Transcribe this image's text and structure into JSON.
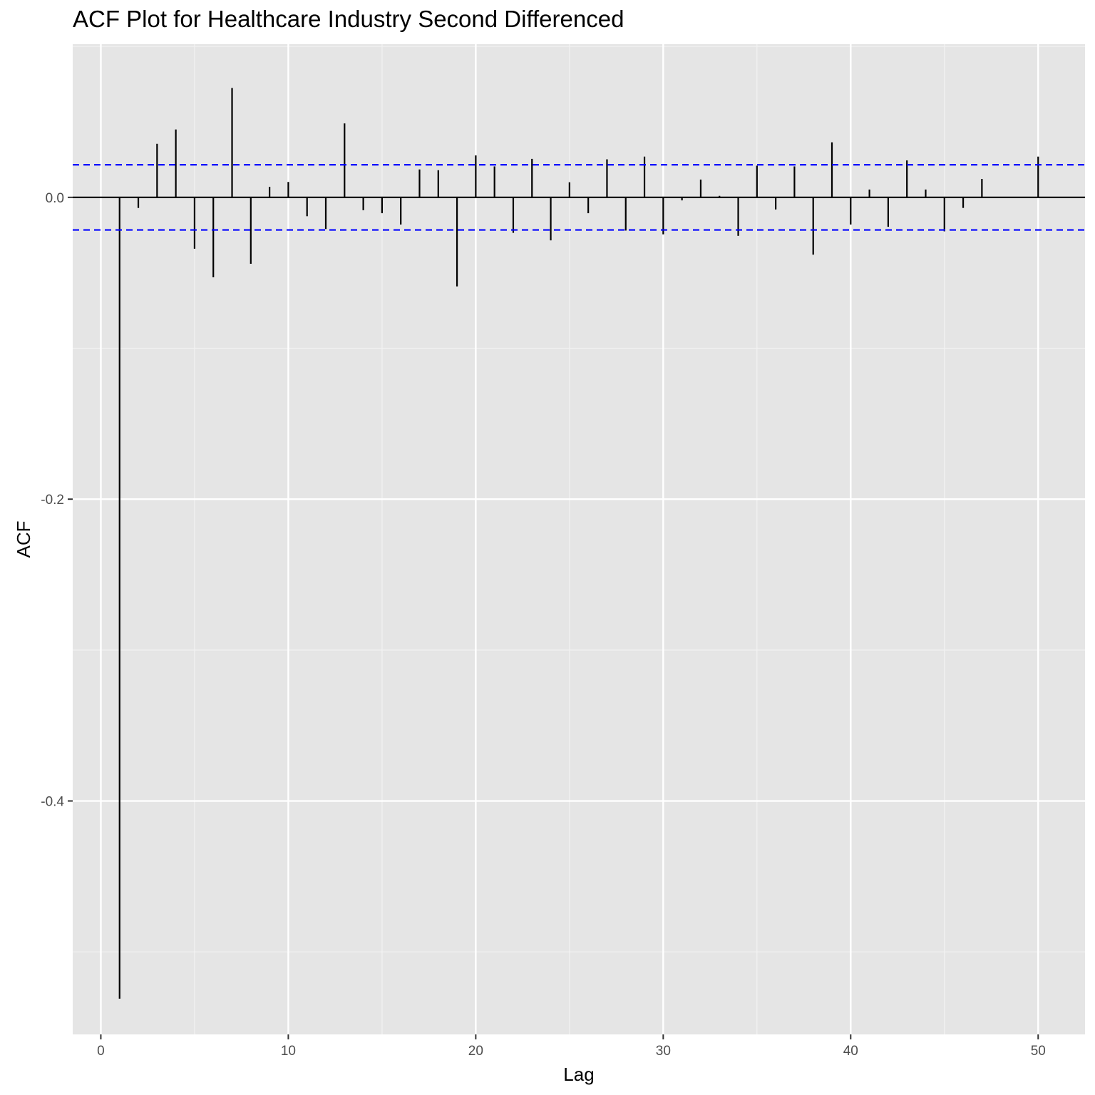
{
  "chart_data": {
    "type": "bar",
    "title": "ACF Plot for Healthcare Industry Second Differenced",
    "xlabel": "Lag",
    "ylabel": "ACF",
    "xlim": [
      -1.5,
      52.5
    ],
    "ylim": [
      -0.5547,
      0.1015
    ],
    "x_ticks": [
      0,
      10,
      20,
      30,
      40,
      50
    ],
    "x_tick_labels": [
      "0",
      "10",
      "20",
      "30",
      "40",
      "50"
    ],
    "y_ticks": [
      0.0,
      -0.2,
      -0.4
    ],
    "y_tick_labels": [
      "0.0",
      "-0.2",
      "-0.4"
    ],
    "grid": true,
    "confidence_bounds": [
      0.0216,
      -0.0216
    ],
    "confidence_color": "#0000ff",
    "lags": [
      1,
      2,
      3,
      4,
      5,
      6,
      7,
      8,
      9,
      10,
      11,
      12,
      13,
      14,
      15,
      16,
      17,
      18,
      19,
      20,
      21,
      22,
      23,
      24,
      25,
      26,
      27,
      28,
      29,
      30,
      31,
      32,
      33,
      34,
      35,
      36,
      37,
      38,
      39,
      40,
      41,
      42,
      43,
      44,
      45,
      46,
      47,
      48,
      49,
      50
    ],
    "values": [
      -0.531,
      -0.007,
      0.0355,
      0.045,
      -0.034,
      -0.053,
      0.0725,
      -0.044,
      0.007,
      0.0102,
      -0.0125,
      -0.021,
      0.049,
      -0.0085,
      -0.0105,
      -0.018,
      0.0185,
      0.018,
      -0.059,
      0.0278,
      0.0205,
      -0.0235,
      0.0255,
      -0.0285,
      0.01,
      -0.0105,
      0.0252,
      -0.022,
      0.027,
      -0.0245,
      -0.002,
      0.0118,
      0.001,
      -0.0255,
      0.021,
      -0.008,
      0.0205,
      -0.038,
      0.0365,
      -0.018,
      0.0052,
      -0.0195,
      0.0245,
      0.0052,
      -0.0225,
      -0.007,
      0.0122,
      0.0,
      0.0,
      0.027
    ]
  }
}
